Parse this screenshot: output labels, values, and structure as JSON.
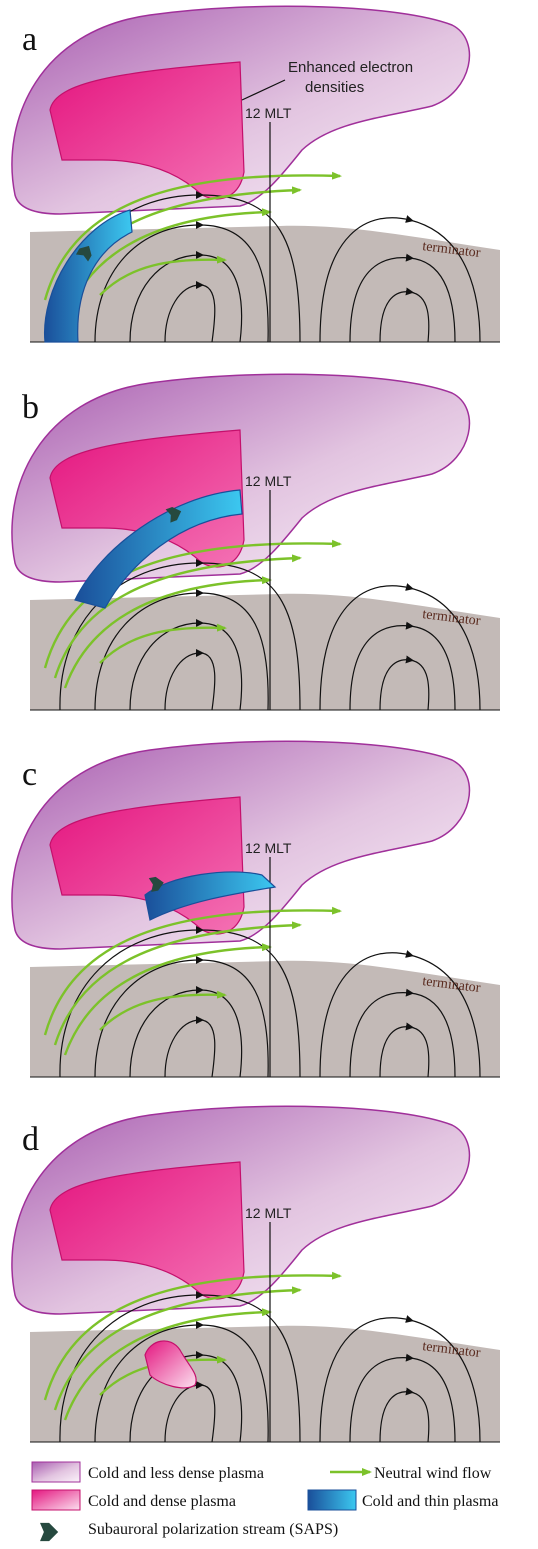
{
  "panels": [
    {
      "label": "a",
      "annotation": [
        "Enhanced electron",
        "densities"
      ],
      "mlt": "12 MLT",
      "terminator": "terminator"
    },
    {
      "label": "b",
      "mlt": "12 MLT",
      "terminator": "terminator"
    },
    {
      "label": "c",
      "mlt": "12 MLT",
      "terminator": "terminator"
    },
    {
      "label": "d",
      "mlt": "12 MLT",
      "terminator": "terminator"
    }
  ],
  "legend": [
    "Cold and less dense plasma",
    "Neutral wind flow",
    "Cold and dense plasma",
    "Cold and thin plasma",
    "Subauroral polarization stream (SAPS)"
  ]
}
